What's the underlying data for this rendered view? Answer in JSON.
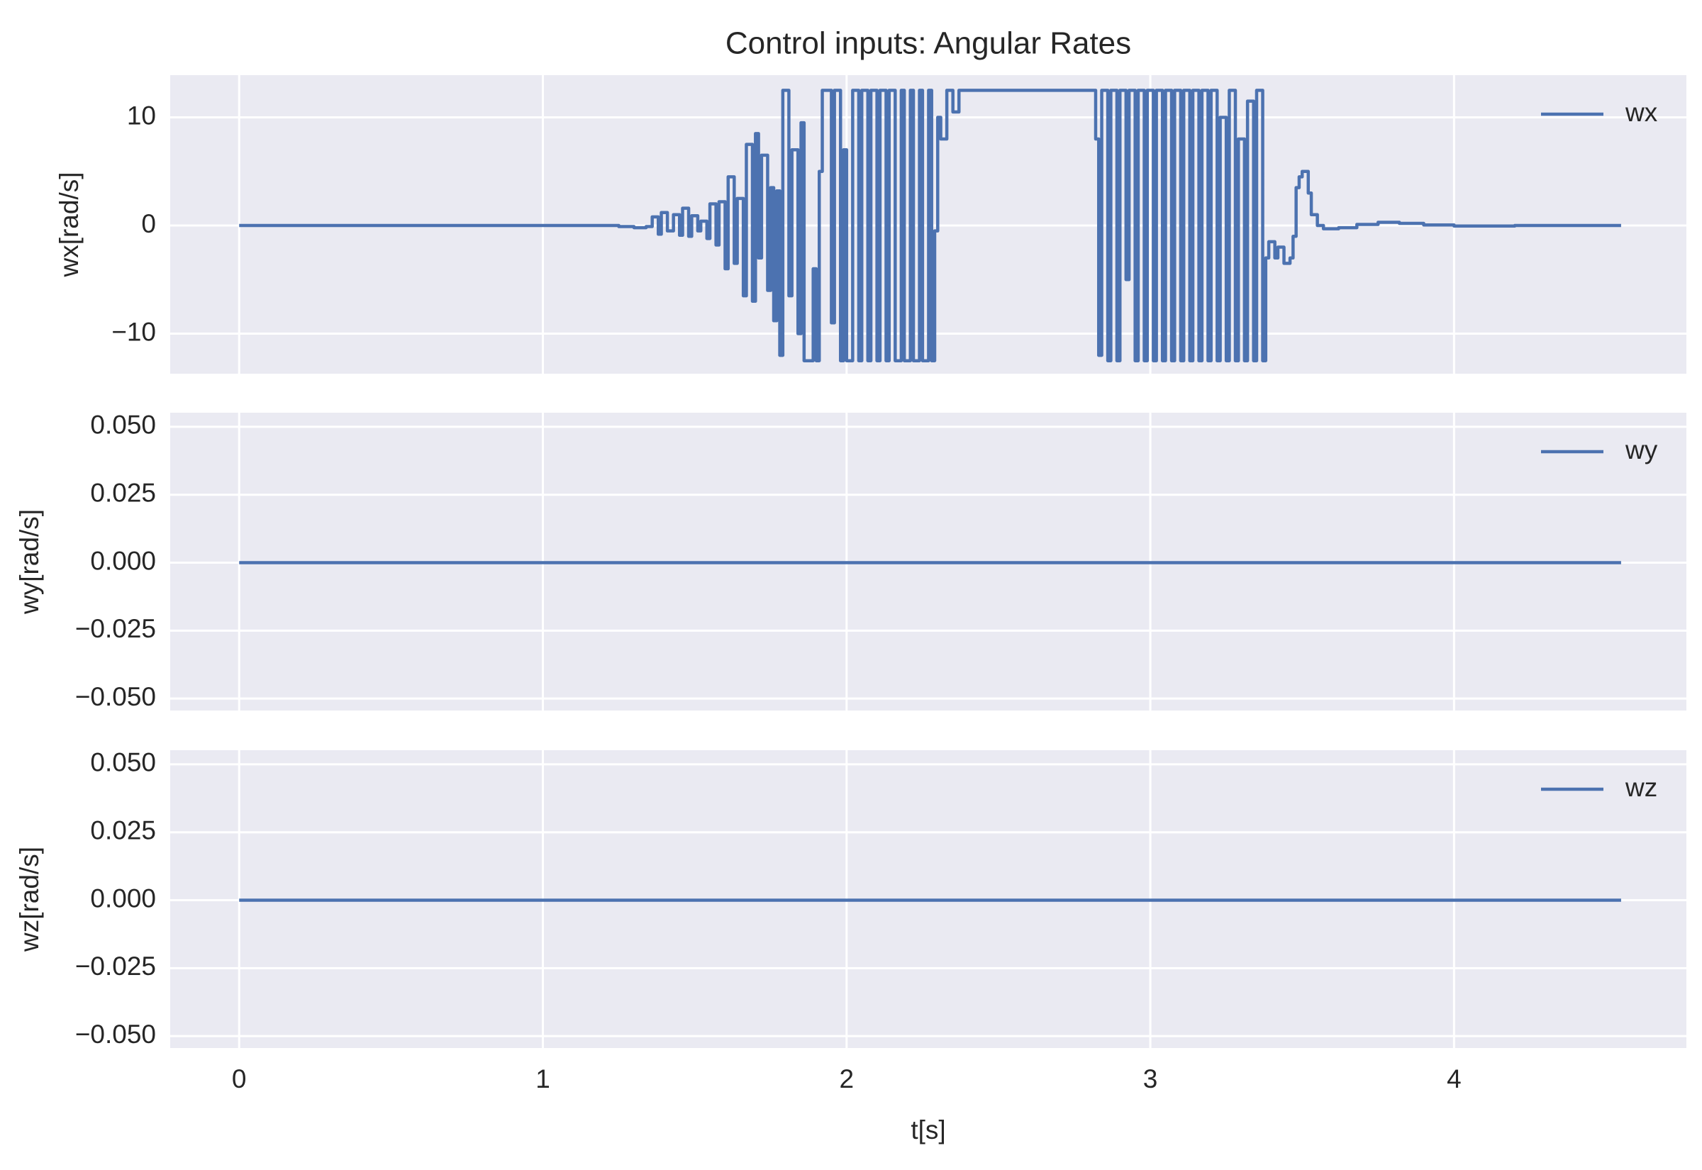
{
  "chart_data": [
    {
      "type": "line",
      "title": "Control inputs: Angular Rates",
      "ylabel": "wx[rad/s]",
      "drawstyle": "steps-post",
      "grid": true,
      "legend": "upper right",
      "xlim": [
        -0.227,
        4.765
      ],
      "xticks": [
        0,
        1,
        2,
        3,
        4
      ],
      "ylim": [
        -13.7,
        13.9
      ],
      "yticks": [
        {
          "value": -10,
          "label": "−10"
        },
        0,
        10
      ],
      "series": [
        {
          "name": "wx",
          "color": "#4c72b0",
          "x": [
            0,
            1.2,
            1.25,
            1.3,
            1.34,
            1.36,
            1.38,
            1.39,
            1.41,
            1.43,
            1.45,
            1.46,
            1.48,
            1.49,
            1.51,
            1.52,
            1.54,
            1.55,
            1.57,
            1.58,
            1.6,
            1.61,
            1.63,
            1.64,
            1.66,
            1.67,
            1.69,
            1.7,
            1.71,
            1.72,
            1.74,
            1.75,
            1.76,
            1.77,
            1.78,
            1.79,
            1.81,
            1.82,
            1.84,
            1.85,
            1.86,
            1.89,
            1.9,
            1.91,
            1.92,
            1.95,
            1.96,
            1.98,
            1.99,
            2.0,
            2.02,
            2.04,
            2.05,
            2.07,
            2.08,
            2.1,
            2.11,
            2.13,
            2.14,
            2.16,
            2.18,
            2.19,
            2.21,
            2.22,
            2.24,
            2.25,
            2.27,
            2.28,
            2.29,
            2.3,
            2.31,
            2.33,
            2.35,
            2.37,
            2.82,
            2.83,
            2.84,
            2.86,
            2.87,
            2.89,
            2.9,
            2.92,
            2.93,
            2.95,
            2.96,
            2.98,
            2.99,
            3.01,
            3.02,
            3.04,
            3.05,
            3.07,
            3.08,
            3.1,
            3.11,
            3.13,
            3.14,
            3.16,
            3.17,
            3.19,
            3.2,
            3.22,
            3.23,
            3.25,
            3.26,
            3.28,
            3.29,
            3.31,
            3.32,
            3.34,
            3.35,
            3.37,
            3.38,
            3.39,
            3.41,
            3.42,
            3.44,
            3.46,
            3.47,
            3.48,
            3.49,
            3.5,
            3.52,
            3.53,
            3.55,
            3.57,
            3.62,
            3.68,
            3.75,
            3.82,
            3.9,
            4.0,
            4.2,
            4.55
          ],
          "values": [
            0,
            0,
            -0.1,
            -0.2,
            -0.1,
            0.8,
            -0.8,
            1.2,
            -0.5,
            1.0,
            -0.9,
            1.6,
            -1.0,
            0.9,
            -0.5,
            0.4,
            -1.2,
            2.0,
            -1.8,
            2.2,
            -4.0,
            4.5,
            -3.5,
            2.5,
            -6.5,
            7.5,
            -7.0,
            8.5,
            -3.0,
            6.5,
            -6.0,
            3.5,
            -8.8,
            3.2,
            -12.0,
            12.5,
            -6.5,
            7.0,
            -10.0,
            9.5,
            -12.5,
            -4.0,
            -12.5,
            5.0,
            12.5,
            -9.0,
            12.5,
            -12.5,
            7.0,
            -12.5,
            12.5,
            -12.5,
            12.5,
            -12.5,
            12.5,
            -12.5,
            12.5,
            -12.5,
            12.5,
            -12.5,
            12.5,
            -12.5,
            12.5,
            -12.5,
            12.5,
            -12.5,
            12.5,
            -12.5,
            -0.5,
            10.0,
            8.0,
            12.5,
            10.5,
            12.5,
            8.0,
            -12.0,
            12.5,
            -12.5,
            12.5,
            -12.5,
            12.5,
            -5.0,
            12.5,
            -12.5,
            12.5,
            -12.5,
            12.5,
            -12.5,
            12.5,
            -12.5,
            12.5,
            -12.5,
            12.5,
            -12.5,
            12.5,
            -12.5,
            12.5,
            -12.5,
            12.5,
            -12.5,
            12.5,
            -12.5,
            10.0,
            -12.5,
            12.5,
            -12.5,
            8.0,
            -12.5,
            11.5,
            -12.5,
            12.5,
            -12.5,
            -3.0,
            -1.5,
            -3.0,
            -2.0,
            -3.5,
            -3.0,
            -1.0,
            3.5,
            4.5,
            5.0,
            3.0,
            1.0,
            0.0,
            -0.3,
            -0.2,
            0.1,
            0.3,
            0.2,
            0.05,
            -0.05,
            0.0,
            0
          ]
        }
      ]
    },
    {
      "type": "line",
      "ylabel": "wy[rad/s]",
      "drawstyle": "steps-post",
      "grid": true,
      "legend": "upper right",
      "xlim": [
        -0.227,
        4.765
      ],
      "xticks": [
        0,
        1,
        2,
        3,
        4
      ],
      "ylim": [
        -0.0544,
        0.0552
      ],
      "yticks": [
        {
          "value": -0.05,
          "label": "−0.050"
        },
        {
          "value": -0.025,
          "label": "−0.025"
        },
        {
          "value": 0,
          "label": "0.000"
        },
        {
          "value": 0.025,
          "label": "0.025"
        },
        {
          "value": 0.05,
          "label": "0.050"
        }
      ],
      "series": [
        {
          "name": "wy",
          "color": "#4c72b0",
          "x": [
            0,
            4.55
          ],
          "values": [
            0,
            0
          ]
        }
      ]
    },
    {
      "type": "line",
      "ylabel": "wz[rad/s]",
      "xlabel": "t[s]",
      "drawstyle": "steps-post",
      "grid": true,
      "legend": "upper right",
      "xlim": [
        -0.227,
        4.765
      ],
      "xticks": [
        0,
        1,
        2,
        3,
        4
      ],
      "ylim": [
        -0.0544,
        0.0552
      ],
      "yticks": [
        {
          "value": -0.05,
          "label": "−0.050"
        },
        {
          "value": -0.025,
          "label": "−0.025"
        },
        {
          "value": 0,
          "label": "0.000"
        },
        {
          "value": 0.025,
          "label": "0.025"
        },
        {
          "value": 0.05,
          "label": "0.050"
        }
      ],
      "series": [
        {
          "name": "wz",
          "color": "#4c72b0",
          "x": [
            0,
            4.55
          ],
          "values": [
            0,
            0
          ]
        }
      ]
    }
  ]
}
